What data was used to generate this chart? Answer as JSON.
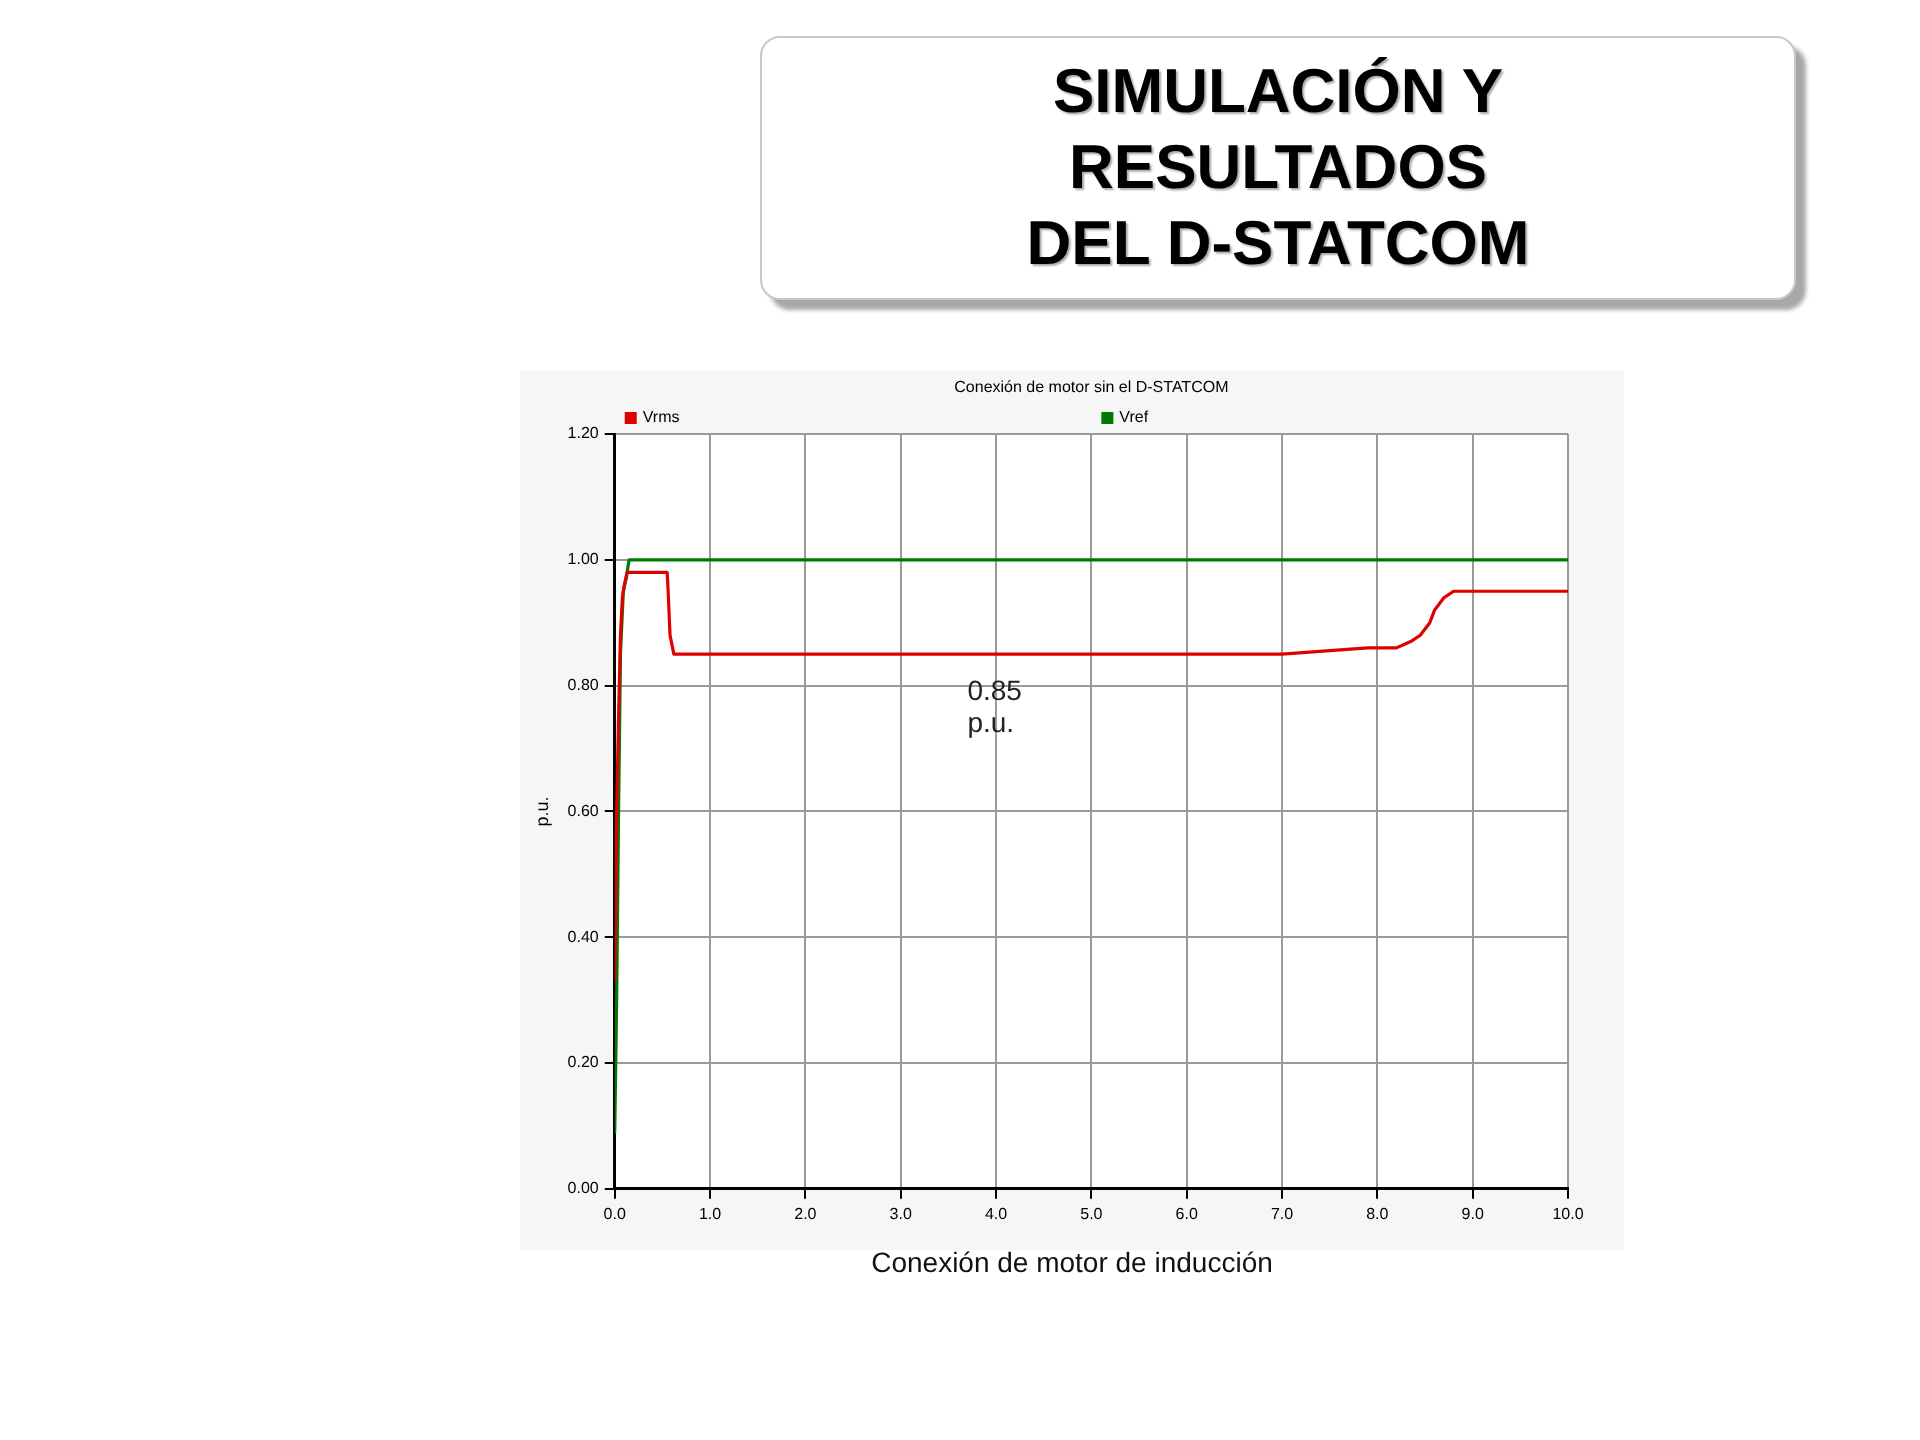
{
  "chart_data": {
    "type": "line",
    "title": "SIMULACIÓN Y RESULTADOS DEL D-STATCOM",
    "subtitle": "Conexión de motor sin el D-STATCOM",
    "ylabel": "p.u.",
    "annotations": [
      "Conexión de motor de inducción",
      {
        "text": "0.85 p.u.",
        "x": 3.7,
        "y": 0.85
      }
    ],
    "series": [
      {
        "name": "Vrms",
        "color": "#e00000",
        "x": [
          0,
          0.02,
          0.04,
          0.06,
          0.08,
          0.1,
          0.13,
          0.55,
          0.56,
          0.58,
          0.62,
          1,
          2,
          3,
          4,
          5,
          6,
          7,
          7.9,
          8,
          8.2,
          8.35,
          8.45,
          8.5,
          8.55,
          8.6,
          8.7,
          8.8,
          8.85,
          9,
          10
        ],
        "values": [
          0.33,
          0.6,
          0.75,
          0.88,
          0.94,
          0.96,
          0.98,
          0.98,
          0.95,
          0.88,
          0.85,
          0.85,
          0.85,
          0.85,
          0.85,
          0.85,
          0.85,
          0.85,
          0.86,
          0.86,
          0.86,
          0.87,
          0.88,
          0.89,
          0.9,
          0.92,
          0.94,
          0.95,
          0.95,
          0.95,
          0.95
        ]
      },
      {
        "name": "Vref",
        "color": "#007a00",
        "x": [
          0,
          0.02,
          0.04,
          0.06,
          0.09,
          0.12,
          0.15,
          10
        ],
        "values": [
          0.09,
          0.3,
          0.6,
          0.85,
          0.95,
          0.97,
          1,
          1
        ]
      }
    ],
    "xlim": [
      0,
      10
    ],
    "xticks": [
      {
        "value": 0,
        "label": "0.0"
      },
      {
        "value": 1,
        "label": "1.0"
      },
      {
        "value": 2,
        "label": "2.0"
      },
      {
        "value": 3,
        "label": "3.0"
      },
      {
        "value": 4,
        "label": "4.0"
      },
      {
        "value": 5,
        "label": "5.0"
      },
      {
        "value": 6,
        "label": "6.0"
      },
      {
        "value": 7,
        "label": "7.0"
      },
      {
        "value": 8,
        "label": "8.0"
      },
      {
        "value": 9,
        "label": "9.0"
      },
      {
        "value": 10,
        "label": "10.0"
      }
    ],
    "ylim": [
      0,
      1.2
    ],
    "yticks": [
      {
        "value": 0,
        "label": "0.00"
      },
      {
        "value": 0.2,
        "label": "0.20"
      },
      {
        "value": 0.4,
        "label": "0.40"
      },
      {
        "value": 0.6,
        "label": "0.60"
      },
      {
        "value": 0.8,
        "label": "0.80"
      },
      {
        "value": 1,
        "label": "1.00"
      },
      {
        "value": 1.2,
        "label": "1.20"
      }
    ],
    "grid": true,
    "legend": "top",
    "marker": "none",
    "line_style": "solid"
  }
}
